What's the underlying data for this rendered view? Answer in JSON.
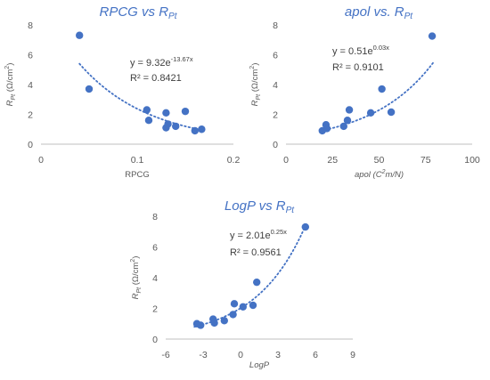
{
  "chart_data": [
    {
      "type": "scatter",
      "title": {
        "main": "RPCG vs R",
        "sub": "Pt"
      },
      "xlabel": {
        "main": "RPCG",
        "italic": false
      },
      "ylabel": {
        "main": "R",
        "sub": "Pt",
        "rest": " (Ω/cm",
        "sup": "2",
        "close": ")"
      },
      "xlim": [
        0,
        0.2
      ],
      "ylim": [
        0,
        8
      ],
      "xticks": [
        0,
        0.1,
        0.2
      ],
      "xtick_labels": [
        "0",
        "0.1",
        "0.2"
      ],
      "yticks": [
        0,
        2,
        4,
        6,
        8
      ],
      "ytick_labels": [
        "0",
        "2",
        "4",
        "6",
        "8"
      ],
      "points": [
        {
          "x": 0.04,
          "y": 7.3
        },
        {
          "x": 0.05,
          "y": 3.7
        },
        {
          "x": 0.11,
          "y": 2.3
        },
        {
          "x": 0.112,
          "y": 1.6
        },
        {
          "x": 0.13,
          "y": 2.1
        },
        {
          "x": 0.13,
          "y": 1.1
        },
        {
          "x": 0.132,
          "y": 1.35
        },
        {
          "x": 0.14,
          "y": 1.2
        },
        {
          "x": 0.15,
          "y": 2.2
        },
        {
          "x": 0.16,
          "y": 0.9
        },
        {
          "x": 0.167,
          "y": 1.0
        }
      ],
      "trendline": {
        "type": "exponential",
        "a": 9.32,
        "b": -13.67,
        "x_range": [
          0.04,
          0.168
        ]
      },
      "equation": {
        "prefix": "y = 9.32e",
        "exp": "-13.67x"
      },
      "r2": "R² = 0.8421",
      "grid": false
    },
    {
      "type": "scatter",
      "title": {
        "main": "apol vs. R",
        "sub": "Pt"
      },
      "xlabel": {
        "main": "apol (C",
        "sup": "2",
        "rest": "m/N)",
        "italic": true
      },
      "ylabel": {
        "main": "R",
        "sub": "Pt",
        "rest": " (Ω/cm",
        "sup": "2",
        "close": ")"
      },
      "xlim": [
        0,
        100
      ],
      "ylim": [
        0,
        8
      ],
      "xticks": [
        0,
        25,
        50,
        75,
        100
      ],
      "xtick_labels": [
        "0",
        "25",
        "50",
        "75",
        "100"
      ],
      "yticks": [
        0,
        2,
        4,
        6,
        8
      ],
      "ytick_labels": [
        "0",
        "2",
        "4",
        "6",
        "8"
      ],
      "points": [
        {
          "x": 19.5,
          "y": 0.9
        },
        {
          "x": 21.5,
          "y": 1.3
        },
        {
          "x": 22,
          "y": 1.05
        },
        {
          "x": 31,
          "y": 1.2
        },
        {
          "x": 33,
          "y": 1.6
        },
        {
          "x": 34,
          "y": 2.3
        },
        {
          "x": 45.5,
          "y": 2.1
        },
        {
          "x": 51.5,
          "y": 3.7
        },
        {
          "x": 56.5,
          "y": 2.15
        },
        {
          "x": 78.5,
          "y": 7.25
        }
      ],
      "trendline": {
        "type": "exponential",
        "a": 0.51,
        "b": 0.03,
        "x_range": [
          19,
          79
        ]
      },
      "equation": {
        "prefix": "y = 0.51e",
        "exp": "0.03x"
      },
      "r2": "R² = 0.9101",
      "grid": false
    },
    {
      "type": "scatter",
      "title": {
        "main": "LogP vs R",
        "sub": "Pt"
      },
      "xlabel": {
        "main": "LogP",
        "italic": true
      },
      "ylabel": {
        "main": "R",
        "sub": "Pt",
        "rest": " (Ω/cm",
        "sup": "2",
        "close": ")"
      },
      "xlim": [
        -6,
        9
      ],
      "ylim": [
        0,
        8
      ],
      "xticks": [
        -6,
        -3,
        0,
        3,
        6,
        9
      ],
      "xtick_labels": [
        "-6",
        "-3",
        "0",
        "3",
        "6",
        "9"
      ],
      "yticks": [
        0,
        2,
        4,
        6,
        8
      ],
      "ytick_labels": [
        "0",
        "2",
        "4",
        "6",
        "8"
      ],
      "points": [
        {
          "x": -3.5,
          "y": 1.0
        },
        {
          "x": -3.2,
          "y": 0.9
        },
        {
          "x": -2.2,
          "y": 1.3
        },
        {
          "x": -2.1,
          "y": 1.05
        },
        {
          "x": -1.3,
          "y": 1.2
        },
        {
          "x": -0.6,
          "y": 1.6
        },
        {
          "x": -0.5,
          "y": 2.3
        },
        {
          "x": 0.2,
          "y": 2.1
        },
        {
          "x": 1.0,
          "y": 2.2
        },
        {
          "x": 1.3,
          "y": 3.7
        },
        {
          "x": 5.2,
          "y": 7.3
        }
      ],
      "trendline": {
        "type": "exponential",
        "a": 2.01,
        "b": 0.25,
        "x_range": [
          -3.7,
          5.3
        ]
      },
      "equation": {
        "prefix": "y = 2.01e",
        "exp": "0.25x"
      },
      "r2": "R² = 0.9561",
      "grid": false
    }
  ]
}
